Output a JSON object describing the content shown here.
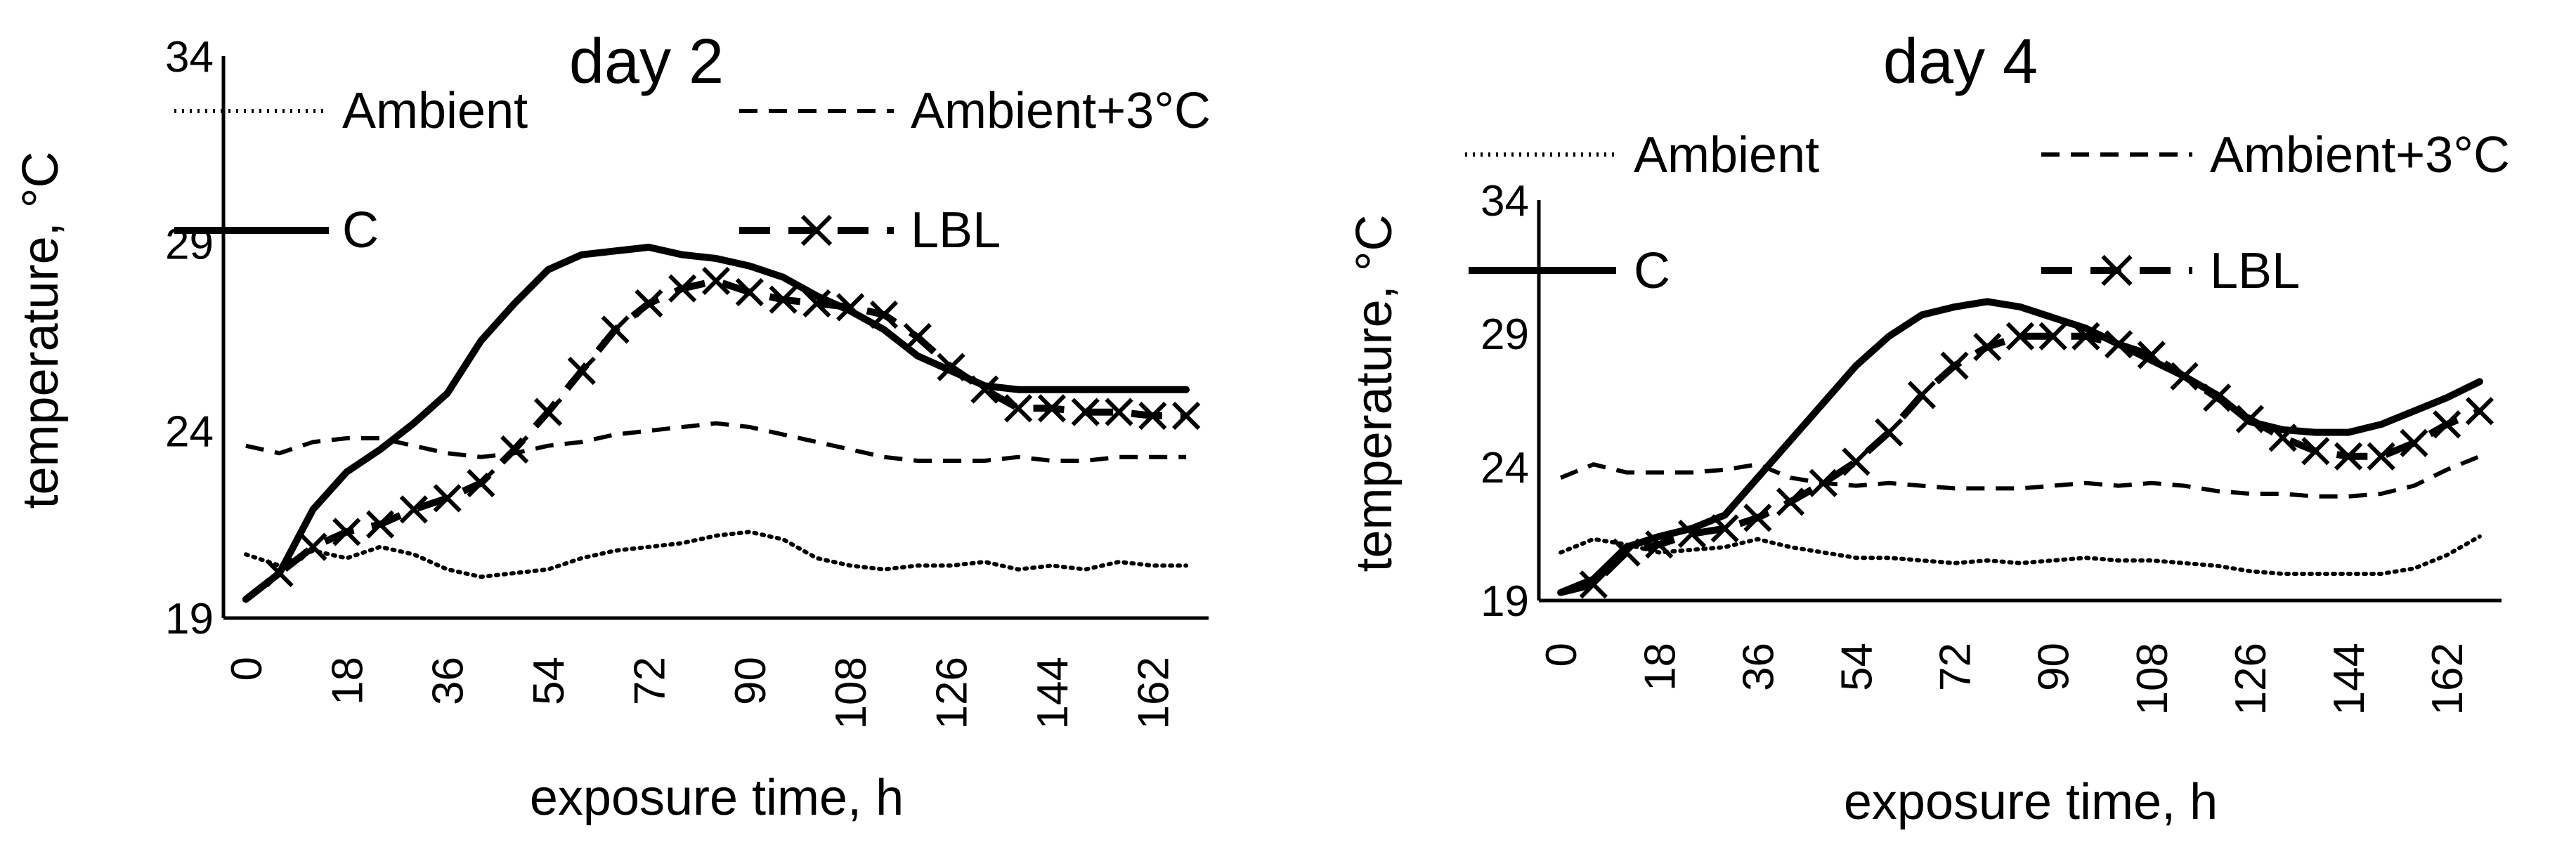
{
  "chart_data": [
    {
      "type": "line",
      "title": "day 2",
      "xlabel": "exposure time, h",
      "ylabel": "temperature, °C",
      "x": [
        0,
        6,
        12,
        18,
        24,
        30,
        36,
        42,
        48,
        54,
        60,
        66,
        72,
        78,
        84,
        90,
        96,
        102,
        108,
        114,
        120,
        126,
        132,
        138,
        144,
        150,
        156,
        162,
        168
      ],
      "x_ticks": [
        "0",
        "18",
        "36",
        "54",
        "72",
        "90",
        "108",
        "126",
        "144",
        "162"
      ],
      "x_tick_values": [
        0,
        18,
        36,
        54,
        72,
        90,
        108,
        126,
        144,
        162
      ],
      "xlim": [
        -4,
        172
      ],
      "ylim": [
        19,
        34
      ],
      "y_ticks": [
        "19",
        "24",
        "29",
        "34"
      ],
      "y_tick_values": [
        19,
        24,
        29,
        34
      ],
      "series": [
        {
          "name": "Ambient",
          "style": "dotted",
          "values": [
            20.7,
            20.4,
            20.8,
            20.6,
            20.9,
            20.7,
            20.3,
            20.1,
            20.2,
            20.3,
            20.6,
            20.8,
            20.9,
            21.0,
            21.2,
            21.3,
            21.1,
            20.6,
            20.4,
            20.3,
            20.4,
            20.4,
            20.5,
            20.3,
            20.4,
            20.3,
            20.5,
            20.4,
            20.4
          ]
        },
        {
          "name": "Ambient+3°C",
          "style": "dashed",
          "values": [
            23.6,
            23.4,
            23.7,
            23.8,
            23.8,
            23.6,
            23.4,
            23.3,
            23.4,
            23.6,
            23.7,
            23.9,
            24.0,
            24.1,
            24.2,
            24.1,
            23.9,
            23.7,
            23.5,
            23.3,
            23.2,
            23.2,
            23.2,
            23.3,
            23.2,
            23.2,
            23.3,
            23.3,
            23.3
          ]
        },
        {
          "name": "C",
          "style": "solid",
          "values": [
            19.5,
            20.2,
            21.9,
            22.9,
            23.5,
            24.2,
            25.0,
            26.4,
            27.4,
            28.3,
            28.7,
            28.8,
            28.9,
            28.7,
            28.6,
            28.4,
            28.1,
            27.6,
            27.2,
            26.7,
            26.0,
            25.6,
            25.2,
            25.1,
            25.1,
            25.1,
            25.1,
            25.1,
            25.1
          ]
        },
        {
          "name": "LBL",
          "style": "dash-x",
          "values": [
            19.5,
            20.2,
            20.9,
            21.3,
            21.5,
            21.9,
            22.2,
            22.6,
            23.5,
            24.5,
            25.6,
            26.7,
            27.4,
            27.8,
            28.0,
            27.7,
            27.5,
            27.4,
            27.3,
            27.1,
            26.5,
            25.7,
            25.1,
            24.6,
            24.6,
            24.5,
            24.5,
            24.4,
            24.4
          ]
        }
      ]
    },
    {
      "type": "line",
      "title": "day 4",
      "xlabel": "exposure time, h",
      "ylabel": "temperature, °C",
      "x": [
        0,
        6,
        12,
        18,
        24,
        30,
        36,
        42,
        48,
        54,
        60,
        66,
        72,
        78,
        84,
        90,
        96,
        102,
        108,
        114,
        120,
        126,
        132,
        138,
        144,
        150,
        156,
        162,
        168
      ],
      "x_ticks": [
        "0",
        "18",
        "36",
        "54",
        "72",
        "90",
        "108",
        "126",
        "144",
        "162"
      ],
      "x_tick_values": [
        0,
        18,
        36,
        54,
        72,
        90,
        108,
        126,
        144,
        162
      ],
      "xlim": [
        -4,
        172
      ],
      "ylim": [
        19,
        34
      ],
      "y_ticks": [
        "19",
        "24",
        "29",
        "34"
      ],
      "y_tick_values": [
        19,
        24,
        29,
        34
      ],
      "series": [
        {
          "name": "Ambient",
          "style": "dotted",
          "values": [
            20.8,
            21.3,
            21.1,
            20.8,
            20.9,
            21.0,
            21.3,
            21.0,
            20.8,
            20.6,
            20.6,
            20.5,
            20.4,
            20.5,
            20.4,
            20.5,
            20.6,
            20.5,
            20.5,
            20.4,
            20.3,
            20.1,
            20.0,
            20.0,
            20.0,
            20.0,
            20.2,
            20.7,
            21.4
          ]
        },
        {
          "name": "Ambient+3°C",
          "style": "dashed",
          "values": [
            23.6,
            24.1,
            23.8,
            23.8,
            23.8,
            23.9,
            24.1,
            23.6,
            23.4,
            23.3,
            23.4,
            23.3,
            23.2,
            23.2,
            23.2,
            23.3,
            23.4,
            23.3,
            23.4,
            23.3,
            23.1,
            23.0,
            23.0,
            22.9,
            22.9,
            23.0,
            23.3,
            23.9,
            24.4
          ]
        },
        {
          "name": "C",
          "style": "solid",
          "values": [
            19.3,
            19.8,
            21.0,
            21.4,
            21.7,
            22.2,
            23.6,
            25.0,
            26.4,
            27.8,
            28.9,
            29.7,
            30.0,
            30.2,
            30.0,
            29.6,
            29.2,
            28.6,
            28.0,
            27.4,
            26.7,
            25.7,
            25.4,
            25.3,
            25.3,
            25.6,
            26.1,
            26.6,
            27.2
          ]
        },
        {
          "name": "LBL",
          "style": "dash-x",
          "values": [
            19.3,
            19.6,
            20.8,
            21.1,
            21.5,
            21.7,
            22.1,
            22.7,
            23.4,
            24.2,
            25.3,
            26.7,
            27.8,
            28.5,
            28.9,
            28.9,
            28.9,
            28.6,
            28.2,
            27.4,
            26.6,
            25.8,
            25.1,
            24.6,
            24.4,
            24.4,
            24.9,
            25.6,
            26.1
          ]
        }
      ]
    }
  ]
}
